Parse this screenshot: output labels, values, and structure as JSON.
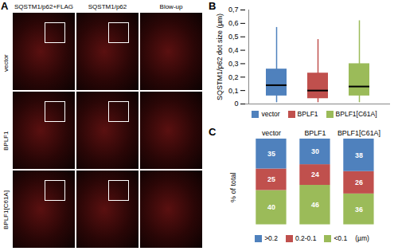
{
  "panel_a": {
    "letter": "A",
    "columns": [
      "SQSTM1/p62+FLAG",
      "SQSTM1/p62",
      "Blow-up"
    ],
    "rows": [
      "vector",
      "BPLF1",
      "BPLF1[C61A]"
    ]
  },
  "chart_data": [
    {
      "type": "box",
      "panel": "B",
      "ylabel": "SQSTM1/p62 dot size (µm)",
      "ylim": [
        0,
        0.7
      ],
      "yticks": [
        0,
        {
          "value": 0.1,
          "label": "0,1"
        },
        {
          "value": 0.2,
          "label": "0,2"
        },
        {
          "value": 0.3,
          "label": "0,3"
        },
        {
          "value": 0.4,
          "label": "0,4"
        },
        {
          "value": 0.5,
          "label": "0,5"
        },
        {
          "value": 0.6,
          "label": "0,6"
        },
        {
          "value": 0.7,
          "label": "0,7"
        }
      ],
      "tick_labels": "y",
      "legend": "bottom",
      "boxes": [
        {
          "name": "vector",
          "color": "#4f81bd",
          "min": 0.01,
          "q1": 0.06,
          "median": 0.14,
          "q3": 0.26,
          "max": 0.57
        },
        {
          "name": "BPLF1",
          "color": "#c0504d",
          "min": 0.01,
          "q1": 0.04,
          "median": 0.1,
          "q3": 0.23,
          "max": 0.48
        },
        {
          "name": "BPLF1[C61A]",
          "color": "#9bbb59",
          "min": 0.01,
          "q1": 0.06,
          "median": 0.13,
          "q3": 0.3,
          "max": 0.62
        }
      ]
    },
    {
      "type": "bar",
      "panel": "C",
      "ylabel": "% of total",
      "stacked": true,
      "data_labels": true,
      "tick_labels": "x",
      "ylim": [
        0,
        100
      ],
      "legend": "bottom",
      "legend_note": "(µm)",
      "categories": [
        "vector",
        "BPLF1",
        "BPLF1[C61A]"
      ],
      "series": [
        {
          "name": "<0.1",
          "color": "#9bbb59",
          "values": [
            40,
            46,
            36
          ]
        },
        {
          "name": "0.2-0.1",
          "color": "#c0504d",
          "values": [
            25,
            24,
            26
          ]
        },
        {
          "name": ">0.2",
          "color": "#4f81bd",
          "values": [
            35,
            30,
            38
          ]
        }
      ]
    }
  ]
}
